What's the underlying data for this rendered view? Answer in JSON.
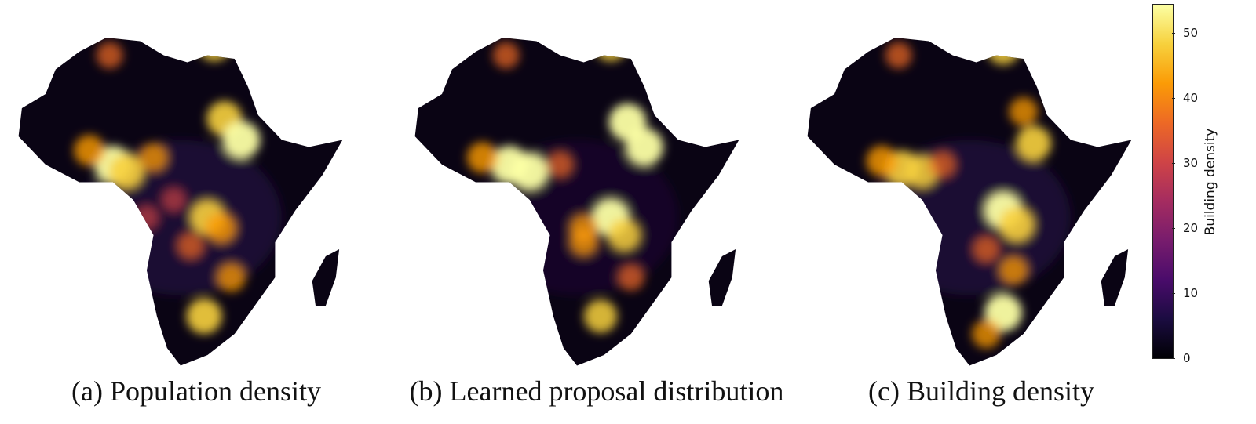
{
  "panels": [
    {
      "id": "a",
      "caption": "(a) Population density",
      "offset": 0,
      "hotspots": [
        [
          0.3,
          0.4,
          1.0
        ],
        [
          0.34,
          0.42,
          0.9
        ],
        [
          0.23,
          0.36,
          0.7
        ],
        [
          0.63,
          0.27,
          0.9
        ],
        [
          0.68,
          0.33,
          1.0
        ],
        [
          0.58,
          0.55,
          0.9
        ],
        [
          0.62,
          0.58,
          0.7
        ],
        [
          0.53,
          0.63,
          0.5
        ],
        [
          0.65,
          0.72,
          0.6
        ],
        [
          0.57,
          0.83,
          0.9
        ],
        [
          0.29,
          0.09,
          0.5
        ],
        [
          0.6,
          0.06,
          0.8
        ],
        [
          0.42,
          0.38,
          0.6
        ],
        [
          0.48,
          0.5,
          0.4
        ],
        [
          0.4,
          0.55,
          0.4
        ]
      ]
    },
    {
      "id": "b",
      "caption": "(b) Learned proposal distribution",
      "offset": 505,
      "hotspots": [
        [
          0.3,
          0.4,
          1.0
        ],
        [
          0.36,
          0.42,
          1.0
        ],
        [
          0.22,
          0.38,
          0.7
        ],
        [
          0.65,
          0.28,
          1.0
        ],
        [
          0.7,
          0.35,
          1.0
        ],
        [
          0.6,
          0.55,
          1.0
        ],
        [
          0.64,
          0.6,
          0.8
        ],
        [
          0.52,
          0.62,
          0.6
        ],
        [
          0.66,
          0.72,
          0.5
        ],
        [
          0.57,
          0.83,
          0.8
        ],
        [
          0.29,
          0.09,
          0.5
        ],
        [
          0.6,
          0.06,
          0.8
        ],
        [
          0.45,
          0.4,
          0.5
        ],
        [
          0.52,
          0.58,
          0.6
        ]
      ]
    },
    {
      "id": "c",
      "caption": "(c) Building density",
      "offset": 1005,
      "hotspots": [
        [
          0.3,
          0.41,
          0.9
        ],
        [
          0.36,
          0.42,
          0.8
        ],
        [
          0.24,
          0.39,
          0.7
        ],
        [
          0.69,
          0.34,
          0.9
        ],
        [
          0.66,
          0.25,
          0.6
        ],
        [
          0.6,
          0.53,
          1.0
        ],
        [
          0.64,
          0.57,
          0.9
        ],
        [
          0.55,
          0.64,
          0.5
        ],
        [
          0.63,
          0.7,
          0.6
        ],
        [
          0.6,
          0.82,
          1.0
        ],
        [
          0.55,
          0.88,
          0.6
        ],
        [
          0.29,
          0.09,
          0.5
        ],
        [
          0.6,
          0.07,
          0.8
        ],
        [
          0.42,
          0.4,
          0.5
        ]
      ]
    }
  ],
  "colorbar": {
    "label": "Building density",
    "min": 0,
    "max": 55,
    "ticks": [
      "0",
      "10",
      "20",
      "30",
      "40",
      "50"
    ],
    "colors": [
      "#000004",
      "#1b0c41",
      "#4a0c6b",
      "#781c6d",
      "#a52c60",
      "#cf4446",
      "#ed6925",
      "#fb9b06",
      "#f7d13d",
      "#fcffa4"
    ]
  }
}
